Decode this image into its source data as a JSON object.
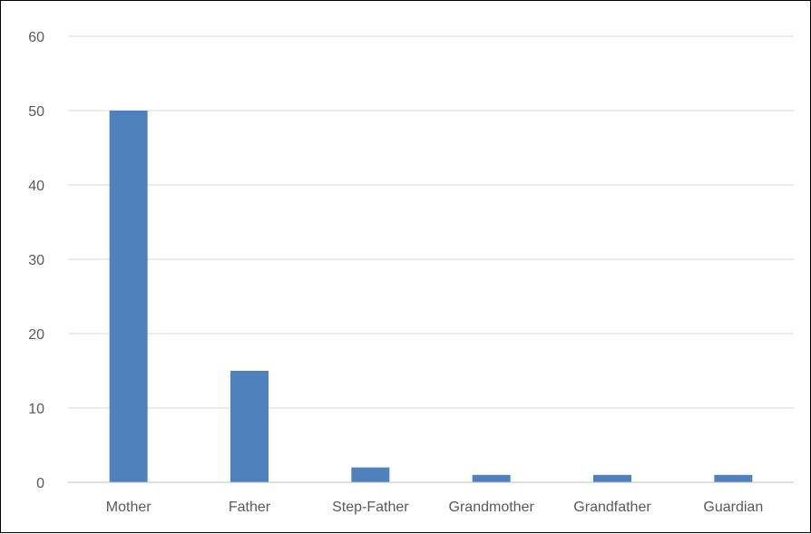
{
  "chart_data": {
    "type": "bar",
    "title": "",
    "xlabel": "",
    "ylabel": "",
    "categories": [
      "Mother",
      "Father",
      "Step-Father",
      "Grandmother",
      "Grandfather",
      "Guardian"
    ],
    "values": [
      50,
      15,
      2,
      1,
      1,
      1
    ],
    "ylim": [
      0,
      60
    ],
    "yticks": [
      0,
      10,
      20,
      30,
      40,
      50,
      60
    ],
    "grid": true,
    "legend": "none",
    "bar_color": "#4F81BD",
    "grid_color": "#D9D9D9",
    "axis_color": "#BFBFBF"
  }
}
